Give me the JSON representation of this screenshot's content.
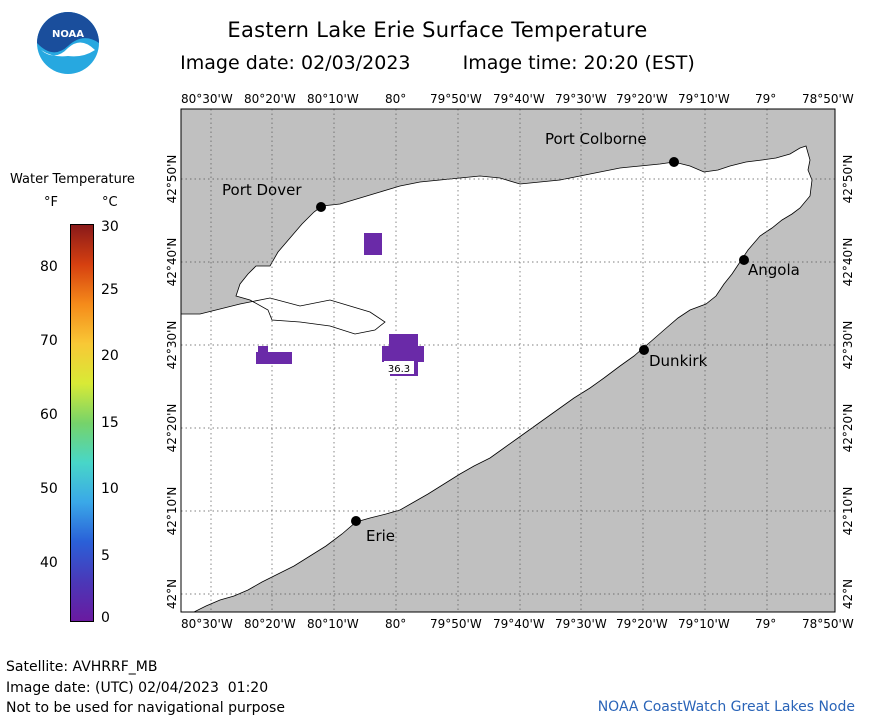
{
  "title": "Eastern Lake Erie Surface Temperature",
  "image_date_label": "Image date: 02/03/2023",
  "image_time_label": "Image time: 20:20 (EST)",
  "logo": {
    "text": "NOAA",
    "icon": "noaa-logo-icon",
    "colors": [
      "#1a4e9c",
      "#27a8e0",
      "#ffffff"
    ]
  },
  "legend": {
    "title": "Water Temperature",
    "unit_f": "°F",
    "unit_c": "°C",
    "f_ticks": [
      "80",
      "70",
      "60",
      "50",
      "40"
    ],
    "c_ticks": [
      "30",
      "25",
      "20",
      "15",
      "10",
      "5",
      "0"
    ],
    "colorbar": [
      "#8a1a1a",
      "#d64010",
      "#f58b1a",
      "#f8c836",
      "#d8ea36",
      "#76d36a",
      "#48d6c8",
      "#3aa8e8",
      "#2a60d8",
      "#4a38b8",
      "#6a1aa0"
    ]
  },
  "map": {
    "lon_labels": [
      "80°30'W",
      "80°20'W",
      "80°10'W",
      "80°",
      "79°50'W",
      "79°40'W",
      "79°30'W",
      "79°20'W",
      "79°10'W",
      "79°",
      "78°50'W"
    ],
    "lat_labels": [
      "42°50'N",
      "42°40'N",
      "42°30'N",
      "42°20'N",
      "42°10'N",
      "42°N"
    ],
    "cities": [
      "Port Colborne",
      "Port Dover",
      "Angola",
      "Dunkirk",
      "Erie"
    ],
    "temperature_value": "36.3",
    "land_color": "#c0c0c0",
    "water_color": "#ffffff",
    "cold_water_color": "#6a2aa8"
  },
  "footer": {
    "satellite": "Satellite: AVHRRF_MB",
    "utc_date": "Image date: (UTC) 02/04/2023  01:20",
    "disclaimer": "Not to be used for navigational purpose",
    "credit": "NOAA CoastWatch Great Lakes Node"
  }
}
